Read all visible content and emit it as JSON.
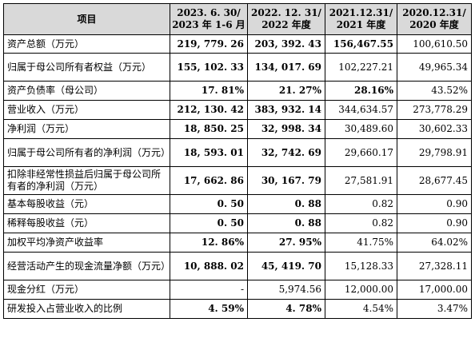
{
  "header": {
    "item": "项目",
    "col1_line1": "2023. 6. 30/",
    "col1_line2": "2023 年 1-6 月",
    "col2_line1": "2022. 12. 31/",
    "col2_line2": "2022 年度",
    "col3_line1": "2021.12.31/",
    "col3_line2": "2021 年度",
    "col4_line1": "2020.12.31/",
    "col4_line2": "2020 年度"
  },
  "rows": [
    {
      "label": "资产总额（万元）",
      "v1": "219, 779. 26",
      "v2": "203, 392. 43",
      "v3": "156,467.55",
      "v4": "100,610.50"
    },
    {
      "label": "归属于母公司所有者权益（万元）",
      "v1": "155, 102. 33",
      "v2": "134, 017. 69",
      "v3": "102,227.21",
      "v4": "49,965.34"
    },
    {
      "label": "资产负债率（母公司）",
      "v1": "17. 81%",
      "v2": "21. 27%",
      "v3": "28.16%",
      "v4": "43.52%"
    },
    {
      "label": "营业收入（万元）",
      "v1": "212, 130. 42",
      "v2": "383, 932. 14",
      "v3": "344,634.57",
      "v4": "273,778.29"
    },
    {
      "label": "净利润（万元）",
      "v1": "18, 850. 25",
      "v2": "32, 998. 34",
      "v3": "30,489.60",
      "v4": "30,602.33"
    },
    {
      "label": "归属于母公司所有者的净利润（万元）",
      "v1": "18, 593. 01",
      "v2": "32, 742. 69",
      "v3": "29,660.17",
      "v4": "29,798.91"
    },
    {
      "label": "扣除非经常性损益后归属于母公司所有者的净利润（万元）",
      "v1": "17, 662. 86",
      "v2": "30, 167. 79",
      "v3": "27,581.91",
      "v4": "28,677.45"
    },
    {
      "label": "基本每股收益（元）",
      "v1": "0. 50",
      "v2": "0. 88",
      "v3": "0.82",
      "v4": "0.90"
    },
    {
      "label": "稀释每股收益（元）",
      "v1": "0. 50",
      "v2": "0. 88",
      "v3": "0.82",
      "v4": "0.90"
    },
    {
      "label": "加权平均净资产收益率",
      "v1": "12. 86%",
      "v2": "27. 95%",
      "v3": "41.75%",
      "v4": "64.02%"
    },
    {
      "label": "经营活动产生的现金流量净额（万元）",
      "v1": "10, 888. 02",
      "v2": "45, 419. 70",
      "v3": "15,128.33",
      "v4": "27,328.11"
    },
    {
      "label": "现金分红（万元）",
      "v1": "-",
      "v2": "5,974.56",
      "v3": "12,000.00",
      "v4": "17,000.00"
    },
    {
      "label": "研发投入占营业收入的比例",
      "v1": "4. 59%",
      "v2": "4. 78%",
      "v3": "4.54%",
      "v4": "3.47%"
    }
  ]
}
